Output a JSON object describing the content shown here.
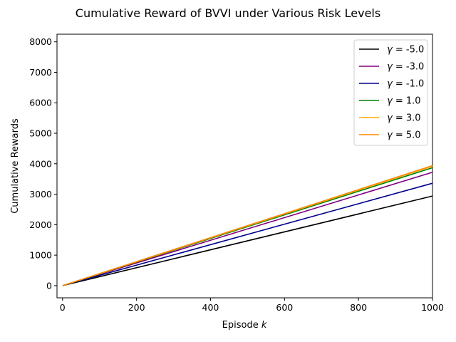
{
  "chart_data": {
    "type": "line",
    "title": "Cumulative Reward of BVVI under Various Risk Levels",
    "xlabel_text": "Episode ",
    "xlabel_var": "k",
    "ylabel": "Cumulative Rewards",
    "xlim": [
      -15,
      1000
    ],
    "ylim": [
      -400,
      8250
    ],
    "xticks": [
      0,
      200,
      400,
      600,
      800,
      1000
    ],
    "yticks": [
      0,
      1000,
      2000,
      3000,
      4000,
      5000,
      6000,
      7000,
      8000
    ],
    "grid": false,
    "legend_placement": "top-right",
    "legend_symbol": "γ",
    "legend_eq": " = ",
    "series": [
      {
        "name": "-5.0",
        "color": "#000000",
        "x": [
          0,
          1000
        ],
        "y": [
          0,
          2940
        ]
      },
      {
        "name": "-3.0",
        "color": "#800080",
        "x": [
          0,
          1000
        ],
        "y": [
          0,
          3720
        ]
      },
      {
        "name": "-1.0",
        "color": "#00008b",
        "x": [
          0,
          1000
        ],
        "y": [
          0,
          3360
        ]
      },
      {
        "name": "1.0",
        "color": "#008000",
        "x": [
          0,
          1000
        ],
        "y": [
          0,
          3870
        ]
      },
      {
        "name": "3.0",
        "color": "#ffa500",
        "x": [
          0,
          1000
        ],
        "y": [
          0,
          3920
        ]
      },
      {
        "name": "5.0",
        "color": "#ff8c00",
        "x": [
          0,
          1000
        ],
        "y": [
          0,
          3940
        ]
      }
    ]
  }
}
